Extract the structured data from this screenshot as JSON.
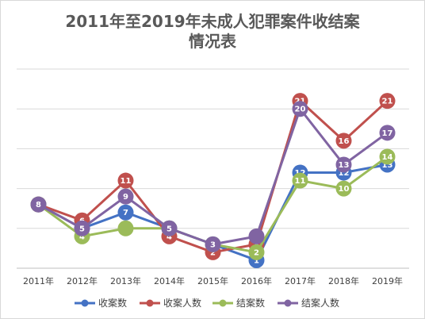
{
  "chart_data": {
    "type": "line",
    "title_lines": [
      "2011年至2019年未成人犯罪案件收结案",
      "情况表"
    ],
    "categories": [
      "2011年",
      "2012年",
      "2013年",
      "2014年",
      "2015年",
      "2016年",
      "2017年",
      "2018年",
      "2019年"
    ],
    "series": [
      {
        "name": "收案数",
        "color": "#4472c4",
        "values": [
          8,
          5,
          7,
          5,
          3,
          1,
          12,
          12,
          13
        ],
        "labels": [
          "",
          "5",
          "7",
          "",
          "",
          "1",
          "12",
          "12",
          "13"
        ]
      },
      {
        "name": "收案人数",
        "color": "#c0504d",
        "values": [
          8,
          6,
          11,
          4,
          2,
          3,
          21,
          16,
          21
        ],
        "labels": [
          "",
          "6",
          "11",
          "4",
          "2",
          "3",
          "21",
          "16",
          "21"
        ]
      },
      {
        "name": "结案数",
        "color": "#9bbb59",
        "values": [
          8,
          4,
          5,
          5,
          3,
          2,
          11,
          10,
          14
        ],
        "labels": [
          "",
          "4",
          "",
          "",
          "",
          "2",
          "11",
          "10",
          "14"
        ]
      },
      {
        "name": "结案人数",
        "color": "#8064a2",
        "values": [
          8,
          5,
          9,
          5,
          3,
          4,
          20,
          13,
          17
        ],
        "labels": [
          "8",
          "5",
          "9",
          "5",
          "3",
          "",
          "20",
          "13",
          "17"
        ]
      }
    ],
    "ylim": [
      0,
      25
    ],
    "y_grid_step": 5,
    "y_tick_labels_shown": false,
    "grid": true,
    "legend_position": "bottom"
  }
}
